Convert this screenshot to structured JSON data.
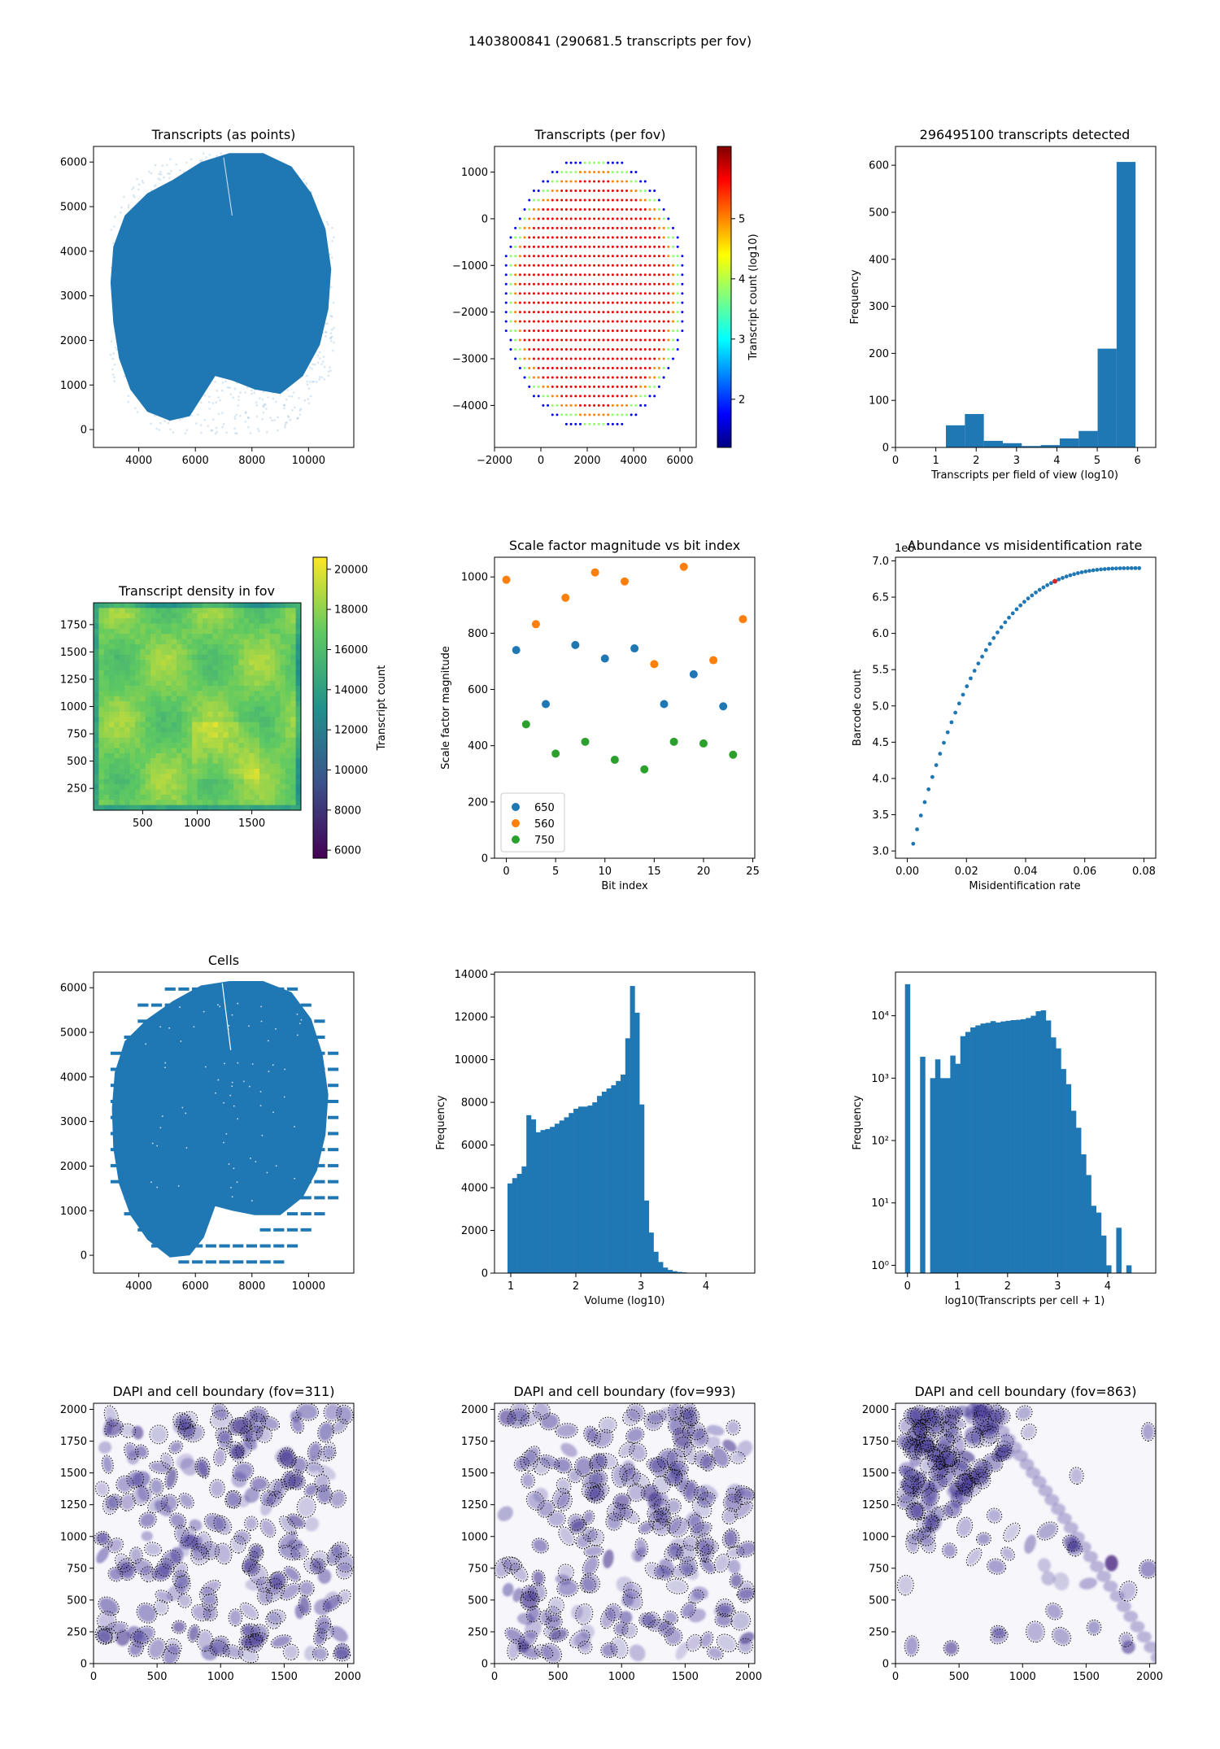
{
  "figure": {
    "suptitle": "1403800841 (290681.5 transcripts per fov)"
  },
  "colors": {
    "blue": "#1f77b4",
    "orange": "#ff7f0e",
    "green": "#2ca02c",
    "red": "#d62728",
    "dapi": "#4a3d9a"
  },
  "chart_data": [
    {
      "id": "p1",
      "type": "scatter",
      "title": "Transcripts (as points)",
      "xlim": [
        2400,
        11600
      ],
      "ylim": [
        -400,
        6350
      ],
      "xticks": [
        4000,
        6000,
        8000,
        10000
      ],
      "yticks": [
        0,
        1000,
        2000,
        3000,
        4000,
        5000,
        6000
      ],
      "description_shape": "dense tissue point cloud",
      "outline": [
        [
          5100,
          200
        ],
        [
          4300,
          400
        ],
        [
          3700,
          900
        ],
        [
          3300,
          1600
        ],
        [
          3100,
          2400
        ],
        [
          3000,
          3300
        ],
        [
          3100,
          4100
        ],
        [
          3500,
          4800
        ],
        [
          4300,
          5300
        ],
        [
          5200,
          5600
        ],
        [
          6200,
          6000
        ],
        [
          7200,
          6200
        ],
        [
          8400,
          6200
        ],
        [
          9400,
          5900
        ],
        [
          10100,
          5300
        ],
        [
          10600,
          4500
        ],
        [
          10800,
          3600
        ],
        [
          10700,
          2700
        ],
        [
          10400,
          1900
        ],
        [
          9800,
          1200
        ],
        [
          9000,
          800
        ],
        [
          8100,
          900
        ],
        [
          7300,
          1100
        ],
        [
          6700,
          1200
        ],
        [
          6300,
          800
        ],
        [
          5800,
          300
        ]
      ]
    },
    {
      "id": "p2",
      "type": "scatter",
      "title": "Transcripts (per fov)",
      "xlim": [
        -2000,
        6700
      ],
      "ylim": [
        -4900,
        1550
      ],
      "xticks": [
        -2000,
        0,
        2000,
        4000,
        6000
      ],
      "yticks": [
        1000,
        0,
        -1000,
        -2000,
        -3000,
        -4000
      ],
      "colorbar": {
        "label": "Transcript count (log10)",
        "range": [
          1.2,
          6.2
        ],
        "ticks": [
          2,
          3,
          4,
          5
        ]
      },
      "grid_step": [
        200,
        200
      ],
      "center": [
        2300,
        -1600
      ],
      "radii": [
        3950,
        3000
      ]
    },
    {
      "id": "p3",
      "type": "bar",
      "title": "296495100 transcripts detected",
      "xlabel": "Transcripts per field of view (log10)",
      "ylabel": "Frequency",
      "xlim": [
        0,
        6.45
      ],
      "ylim": [
        0,
        640
      ],
      "xticks": [
        0,
        1,
        2,
        3,
        4,
        5,
        6
      ],
      "yticks": [
        0,
        100,
        200,
        300,
        400,
        500,
        600
      ],
      "bin_edges": [
        1.25,
        1.72,
        2.19,
        2.66,
        3.13,
        3.6,
        4.07,
        4.54,
        5.01,
        5.48,
        5.95
      ],
      "values": [
        47,
        71,
        14,
        9,
        3,
        5,
        19,
        35,
        210,
        607
      ]
    },
    {
      "id": "p4",
      "type": "heatmap",
      "title": "Transcript density in fov",
      "xlim": [
        50,
        1950
      ],
      "ylim": [
        50,
        1950
      ],
      "xticks": [
        500,
        1000,
        1500
      ],
      "yticks": [
        250,
        500,
        750,
        1000,
        1250,
        1500,
        1750
      ],
      "colorbar": {
        "label": "Transcript count",
        "range": [
          5600,
          20600
        ],
        "ticks": [
          6000,
          8000,
          10000,
          12000,
          14000,
          16000,
          18000,
          20000
        ]
      }
    },
    {
      "id": "p5",
      "type": "scatter",
      "title": "Scale factor magnitude vs bit index",
      "xlabel": "Bit index",
      "ylabel": "Scale factor magnitude",
      "xlim": [
        -1.2,
        25.2
      ],
      "ylim": [
        0,
        1070
      ],
      "xticks": [
        0,
        5,
        10,
        15,
        20,
        25
      ],
      "yticks": [
        0,
        200,
        400,
        600,
        800,
        1000
      ],
      "series": [
        {
          "name": "650",
          "x": [
            1,
            4,
            7,
            10,
            13,
            16,
            19,
            22
          ],
          "y": [
            740,
            548,
            758,
            710,
            746,
            548,
            654,
            540
          ]
        },
        {
          "name": "560",
          "x": [
            0,
            3,
            6,
            9,
            12,
            15,
            18,
            21,
            24
          ],
          "y": [
            990,
            832,
            926,
            1016,
            984,
            690,
            1036,
            704,
            850
          ]
        },
        {
          "name": "750",
          "x": [
            2,
            5,
            8,
            11,
            14,
            17,
            20,
            23
          ],
          "y": [
            476,
            372,
            414,
            350,
            316,
            414,
            408,
            368
          ]
        }
      ]
    },
    {
      "id": "p6",
      "type": "scatter",
      "title": "Abundance vs misidentification rate",
      "xlabel": "Misidentification rate",
      "ylabel": "Barcode count",
      "offset_label": "1e6",
      "xlim": [
        -0.004,
        0.084
      ],
      "ylim": [
        2.9,
        7.05
      ],
      "xticks": [
        0.0,
        0.02,
        0.04,
        0.06,
        0.08
      ],
      "yticks": [
        3.0,
        3.5,
        4.0,
        4.5,
        5.0,
        5.5,
        6.0,
        6.5,
        7.0
      ],
      "xtick_labels": [
        "0.00",
        "0.02",
        "0.04",
        "0.06",
        "0.08"
      ],
      "ytick_labels": [
        "3.0",
        "3.5",
        "4.0",
        "4.5",
        "5.0",
        "5.5",
        "6.0",
        "6.5",
        "7.0"
      ],
      "highlight_x": 0.05
    },
    {
      "id": "p7",
      "type": "scatter",
      "title": "Cells",
      "xlim": [
        2400,
        11600
      ],
      "ylim": [
        -400,
        6350
      ],
      "xticks": [
        4000,
        6000,
        8000,
        10000
      ],
      "yticks": [
        0,
        1000,
        2000,
        3000,
        4000,
        5000,
        6000
      ]
    },
    {
      "id": "p8",
      "type": "bar",
      "title": "",
      "xlabel": "Volume (log10)",
      "ylabel": "Frequency",
      "xlim": [
        0.75,
        4.75
      ],
      "ylim": [
        0,
        14100
      ],
      "xticks": [
        1,
        2,
        3,
        4
      ],
      "yticks": [
        0,
        2000,
        4000,
        6000,
        8000,
        10000,
        12000,
        14000
      ],
      "bin_start": 0.95,
      "bin_width": 0.0724,
      "values": [
        4200,
        4450,
        4650,
        5000,
        7400,
        7200,
        6600,
        6700,
        6750,
        6850,
        7000,
        7150,
        7300,
        7500,
        7700,
        7800,
        7800,
        7850,
        8000,
        8300,
        8500,
        8650,
        8800,
        9000,
        9300,
        11000,
        13450,
        12200,
        7900,
        3400,
        1900,
        1000,
        520,
        260,
        150,
        90,
        55,
        35,
        20,
        12,
        8,
        5,
        3,
        2,
        1
      ]
    },
    {
      "id": "p9",
      "type": "bar",
      "title": "",
      "yscale": "log",
      "xlabel": "log10(Transcripts per cell + 1)",
      "ylabel": "Frequency",
      "xlim": [
        -0.24,
        4.96
      ],
      "ylim": [
        0.75,
        50000
      ],
      "xticks": [
        0,
        1,
        2,
        3,
        4
      ],
      "yticks": [
        1,
        10,
        100,
        1000,
        10000
      ],
      "ytick_labels": [
        "10⁰",
        "10¹",
        "10²",
        "10³",
        "10⁴"
      ],
      "bin_start": -0.05,
      "bin_width": 0.1005,
      "values": [
        32000,
        0,
        0,
        2200,
        0,
        1000,
        2000,
        1000,
        1000,
        2300,
        1700,
        4700,
        5500,
        6500,
        7000,
        7500,
        7700,
        8200,
        7800,
        8100,
        8300,
        8500,
        8600,
        8800,
        9200,
        10000,
        11800,
        12200,
        8400,
        4500,
        3000,
        1400,
        800,
        300,
        160,
        60,
        28,
        9,
        7,
        3,
        1,
        0,
        4,
        0,
        1
      ]
    },
    {
      "id": "p10",
      "type": "heatmap",
      "title": "DAPI and cell boundary (fov=311)",
      "xlim": [
        0,
        2048
      ],
      "ylim": [
        0,
        2048
      ],
      "xticks": [
        0,
        500,
        1000,
        1500,
        2000
      ],
      "yticks": [
        0,
        250,
        500,
        750,
        1000,
        1250,
        1500,
        1750,
        2000
      ],
      "seed": 311,
      "nuclei": 230
    },
    {
      "id": "p11",
      "type": "heatmap",
      "title": "DAPI and cell boundary (fov=993)",
      "xlim": [
        0,
        2048
      ],
      "ylim": [
        0,
        2048
      ],
      "xticks": [
        0,
        500,
        1000,
        1500,
        2000
      ],
      "yticks": [
        0,
        250,
        500,
        750,
        1000,
        1250,
        1500,
        1750,
        2000
      ],
      "seed": 993,
      "nuclei": 230
    },
    {
      "id": "p12",
      "type": "heatmap",
      "title": "DAPI and cell boundary (fov=863)",
      "xlim": [
        0,
        2048
      ],
      "ylim": [
        0,
        2048
      ],
      "xticks": [
        0,
        500,
        1000,
        1500,
        2000
      ],
      "yticks": [
        0,
        250,
        500,
        750,
        1000,
        1250,
        1500,
        1750,
        2000
      ],
      "seed": 863,
      "nuclei": 170
    }
  ],
  "legend": {
    "p5": [
      "650",
      "560",
      "750"
    ]
  }
}
